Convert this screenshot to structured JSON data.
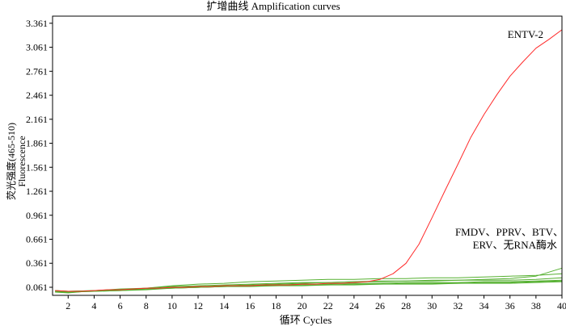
{
  "chart_data": {
    "type": "line",
    "title": "扩增曲线 Amplification curves",
    "xlabel": "循环 Cycles",
    "ylabel_lines": [
      "荧光强度(465-510)",
      "Fluorescence"
    ],
    "xlim": [
      0.8,
      40
    ],
    "ylim": [
      -0.04,
      3.45
    ],
    "x_ticks": [
      2,
      4,
      6,
      8,
      10,
      12,
      14,
      16,
      18,
      20,
      22,
      24,
      26,
      28,
      30,
      32,
      34,
      36,
      38,
      40
    ],
    "y_ticks": [
      0.061,
      0.361,
      0.661,
      0.961,
      1.261,
      1.561,
      1.861,
      2.161,
      2.461,
      2.761,
      3.061,
      3.361
    ],
    "annotations": [
      {
        "text": "ENTV-2"
      },
      {
        "text": "FMDV、PPRV、BTV、"
      },
      {
        "text": "ERV、无RNA酶水"
      }
    ],
    "colors": {
      "positive": "#ff2a2a",
      "negative": "#55b030",
      "axis": "#000000"
    },
    "series": [
      {
        "color_key": "positive",
        "x": [
          1,
          2,
          3,
          4,
          5,
          6,
          7,
          8,
          9,
          10,
          11,
          12,
          13,
          14,
          15,
          16,
          17,
          18,
          19,
          20,
          21,
          22,
          23,
          24,
          25,
          26,
          27,
          28,
          29,
          30,
          31,
          32,
          33,
          34,
          35,
          36,
          37,
          38,
          39,
          40
        ],
        "y": [
          0.02,
          0.01,
          0.01,
          0.02,
          0.03,
          0.03,
          0.04,
          0.05,
          0.05,
          0.06,
          0.06,
          0.07,
          0.07,
          0.08,
          0.08,
          0.08,
          0.09,
          0.09,
          0.09,
          0.1,
          0.1,
          0.11,
          0.11,
          0.12,
          0.13,
          0.16,
          0.23,
          0.36,
          0.6,
          0.93,
          1.27,
          1.6,
          1.94,
          2.22,
          2.47,
          2.7,
          2.88,
          3.05,
          3.16,
          3.28
        ]
      },
      {
        "color_key": "negative",
        "x": [
          1,
          2,
          4,
          6,
          8,
          10,
          12,
          14,
          16,
          18,
          20,
          22,
          24,
          26,
          28,
          30,
          32,
          34,
          36,
          38,
          40
        ],
        "y": [
          0.01,
          0.0,
          0.02,
          0.03,
          0.05,
          0.08,
          0.1,
          0.11,
          0.13,
          0.14,
          0.15,
          0.16,
          0.16,
          0.17,
          0.17,
          0.18,
          0.18,
          0.19,
          0.2,
          0.21,
          0.23
        ]
      },
      {
        "color_key": "negative",
        "x": [
          1,
          2,
          4,
          6,
          8,
          10,
          12,
          14,
          16,
          18,
          20,
          22,
          24,
          26,
          28,
          30,
          32,
          34,
          36,
          38,
          40
        ],
        "y": [
          0.0,
          -0.01,
          0.02,
          0.03,
          0.04,
          0.06,
          0.07,
          0.08,
          0.09,
          0.1,
          0.11,
          0.12,
          0.13,
          0.14,
          0.14,
          0.15,
          0.15,
          0.16,
          0.17,
          0.2,
          0.3
        ]
      },
      {
        "color_key": "negative",
        "x": [
          1,
          2,
          4,
          6,
          8,
          10,
          12,
          14,
          16,
          18,
          20,
          22,
          24,
          26,
          28,
          30,
          32,
          34,
          36,
          38,
          40
        ],
        "y": [
          0.02,
          0.01,
          0.02,
          0.03,
          0.04,
          0.05,
          0.06,
          0.07,
          0.08,
          0.09,
          0.1,
          0.1,
          0.11,
          0.11,
          0.12,
          0.12,
          0.12,
          0.13,
          0.13,
          0.14,
          0.15
        ]
      },
      {
        "color_key": "negative",
        "x": [
          1,
          2,
          4,
          6,
          8,
          10,
          12,
          14,
          16,
          18,
          20,
          22,
          24,
          26,
          28,
          30,
          32,
          34,
          36,
          38,
          40
        ],
        "y": [
          0.01,
          0.0,
          0.01,
          0.02,
          0.04,
          0.05,
          0.06,
          0.07,
          0.08,
          0.08,
          0.09,
          0.09,
          0.1,
          0.1,
          0.11,
          0.11,
          0.11,
          0.12,
          0.12,
          0.13,
          0.14
        ]
      },
      {
        "color_key": "negative",
        "x": [
          1,
          2,
          4,
          6,
          8,
          10,
          12,
          14,
          16,
          18,
          20,
          22,
          24,
          26,
          28,
          30,
          32,
          34,
          36,
          38,
          40
        ],
        "y": [
          0.0,
          0.0,
          0.01,
          0.02,
          0.03,
          0.05,
          0.06,
          0.07,
          0.07,
          0.08,
          0.08,
          0.09,
          0.09,
          0.1,
          0.1,
          0.1,
          0.11,
          0.11,
          0.11,
          0.12,
          0.13
        ]
      },
      {
        "color_key": "negative",
        "x": [
          1,
          2,
          4,
          6,
          8,
          10,
          12,
          14,
          16,
          18,
          20,
          22,
          24,
          26,
          28,
          30,
          32,
          34,
          36,
          38,
          40
        ],
        "y": [
          0.02,
          0.01,
          0.02,
          0.04,
          0.05,
          0.07,
          0.08,
          0.09,
          0.1,
          0.11,
          0.12,
          0.12,
          0.13,
          0.13,
          0.14,
          0.14,
          0.15,
          0.15,
          0.15,
          0.16,
          0.18
        ]
      }
    ]
  }
}
